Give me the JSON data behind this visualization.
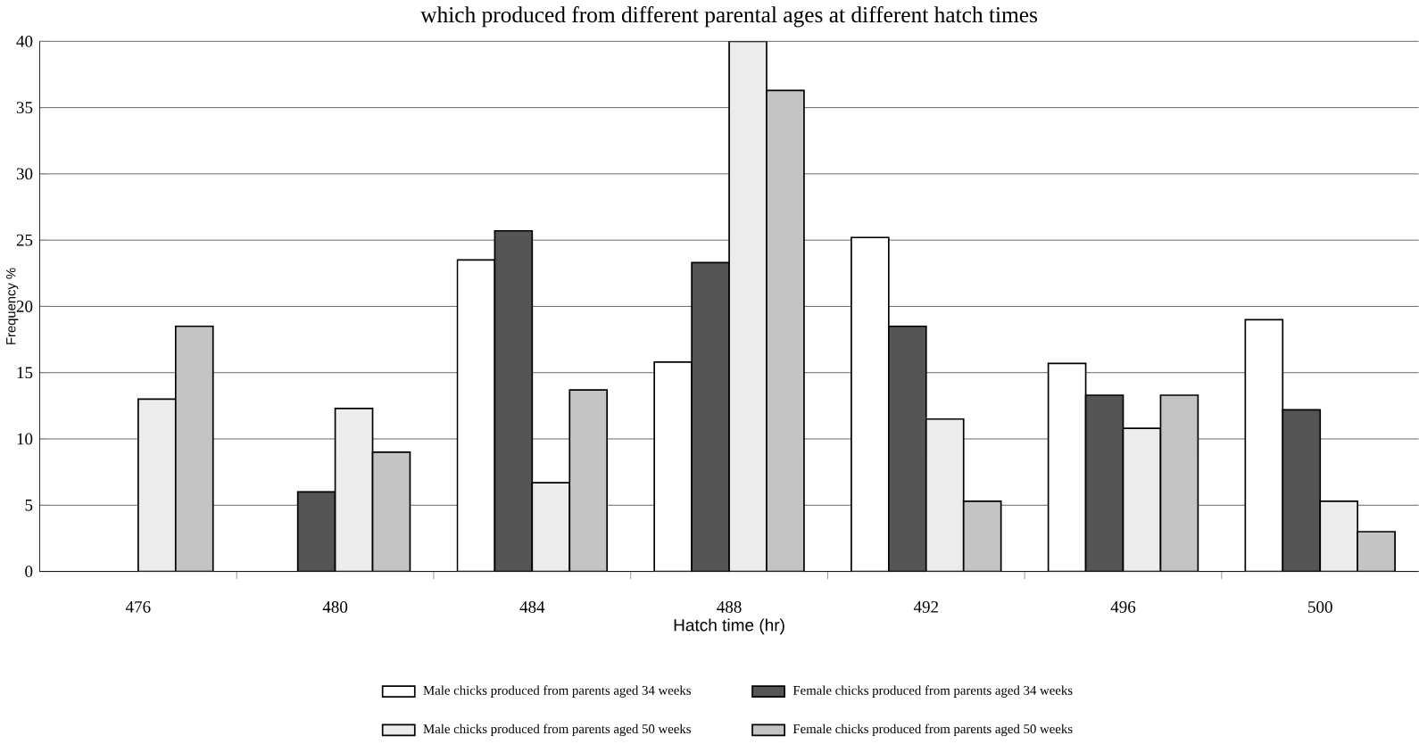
{
  "chart_data": {
    "type": "bar",
    "title": "which produced from different parental ages at different hatch times",
    "xlabel": "Hatch time (hr)",
    "ylabel": "Frequency %",
    "categories": [
      "476",
      "480",
      "484",
      "488",
      "492",
      "496",
      "500"
    ],
    "series": [
      {
        "name": "Male chicks produced from parents aged 34 weeks",
        "color": "#ffffff",
        "values": [
          null,
          null,
          23.5,
          15.8,
          25.2,
          15.7,
          19
        ]
      },
      {
        "name": "Female chicks produced from parents aged 34 weeks",
        "color": "#555555",
        "values": [
          null,
          6,
          25.7,
          23.3,
          18.5,
          13.3,
          12.2
        ]
      },
      {
        "name": "Male chicks produced from parents aged 50 weeks",
        "color": "#ececec",
        "values": [
          13,
          12.3,
          6.7,
          40,
          11.5,
          10.8,
          5.3
        ]
      },
      {
        "name": "Female chicks produced from parents aged 50 weeks",
        "color": "#c4c4c4",
        "values": [
          18.5,
          9,
          13.7,
          36.3,
          5.3,
          13.3,
          3
        ]
      }
    ],
    "ylim": [
      0,
      40
    ],
    "yticks": [
      0,
      5,
      10,
      15,
      20,
      25,
      30,
      35,
      40
    ],
    "grid": "y",
    "legend": "bottom"
  }
}
